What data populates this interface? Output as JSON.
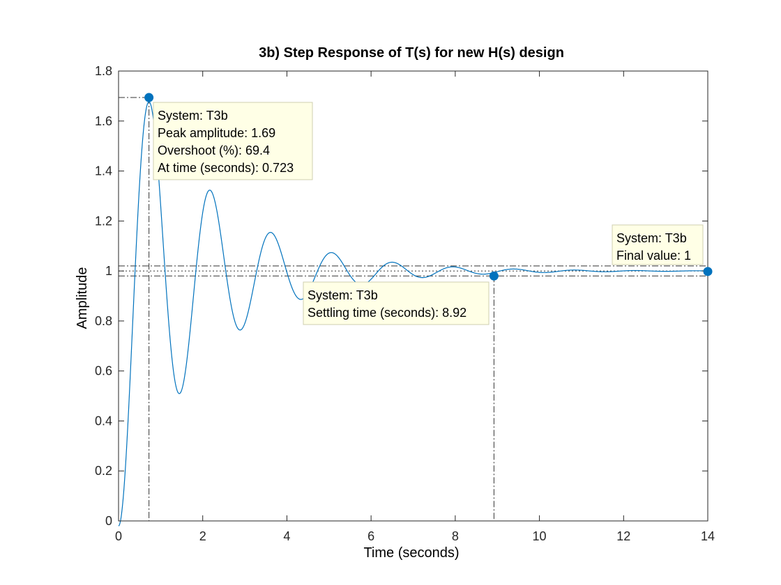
{
  "colors": {
    "line": "#0072BD",
    "marker": "#0072BD",
    "datatip_bg": "#FFFFE6",
    "datatip_border": "#CFCFB0",
    "axes": "#262626",
    "ref_lines": "#333333"
  },
  "chart_data": {
    "type": "line",
    "title": "3b) Step Response of T(s) for new H(s) design",
    "xlabel": "Time (seconds)",
    "ylabel": "Amplitude",
    "xlim": [
      0,
      14
    ],
    "ylim": [
      0,
      1.8
    ],
    "xticks": [
      0,
      2,
      4,
      6,
      8,
      10,
      12,
      14
    ],
    "xtick_labels": [
      "0",
      "2",
      "4",
      "6",
      "8",
      "10",
      "12",
      "14"
    ],
    "yticks": [
      0,
      0.2,
      0.4,
      0.6,
      0.8,
      1,
      1.2,
      1.4,
      1.6,
      1.8
    ],
    "ytick_labels": [
      "0",
      "0.2",
      "0.4",
      "0.6",
      "0.8",
      "1",
      "1.2",
      "1.4",
      "1.6",
      "1.8"
    ],
    "grid": false,
    "series": [
      {
        "system": "T3b",
        "step_model": {
          "final_value": 1,
          "peak_time": 0.723,
          "overshoot_pct": 69.4
        }
      }
    ],
    "reference_lines": {
      "settling_band": [
        0.98,
        1.02
      ],
      "final_value": 1,
      "peak_amplitude": 1.694,
      "peak_time": 0.723,
      "settling_time": 8.92
    },
    "markers": [
      {
        "name": "peak",
        "x": 0.723,
        "y": 1.694
      },
      {
        "name": "settling",
        "x": 8.92,
        "y": 0.98
      },
      {
        "name": "final",
        "x": 14,
        "y": 0.998
      }
    ],
    "datatips": [
      {
        "name": "peak",
        "lines": [
          "System: T3b",
          "Peak amplitude: 1.69",
          "Overshoot (%): 69.4",
          "At time (seconds): 0.723"
        ]
      },
      {
        "name": "settling",
        "lines": [
          "System: T3b",
          "Settling time (seconds): 8.92"
        ]
      },
      {
        "name": "final",
        "lines": [
          "System: T3b",
          "Final value: 1"
        ]
      }
    ]
  }
}
